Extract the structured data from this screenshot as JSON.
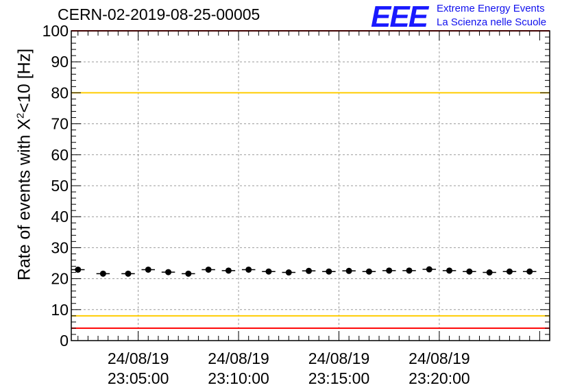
{
  "header": {
    "title": "CERN-02-2019-08-25-00005",
    "logo_mark": "EEE",
    "logo_line1": "Extreme Energy Events",
    "logo_line2": "La Scienza nelle Scuole"
  },
  "chart_data": {
    "type": "scatter",
    "title": "CERN-02-2019-08-25-00005",
    "ylabel_prefix": "Rate of events with X",
    "ylabel_sup": "2",
    "ylabel_suffix": "<10 [Hz]",
    "xlabel": "",
    "ylim": [
      0,
      100
    ],
    "yticks": [
      0,
      10,
      20,
      30,
      40,
      50,
      60,
      70,
      80,
      90,
      100
    ],
    "xlim": [
      "24/08/19 23:01:40",
      "24/08/19 23:25:30"
    ],
    "xticks": [
      {
        "date": "24/08/19",
        "time": "23:05:00"
      },
      {
        "date": "24/08/19",
        "time": "23:10:00"
      },
      {
        "date": "24/08/19",
        "time": "23:15:00"
      },
      {
        "date": "24/08/19",
        "time": "23:20:00"
      }
    ],
    "grid": true,
    "bin_width_s": 40,
    "series": [
      {
        "x": [
          "23:02:00",
          "23:03:15",
          "23:04:30",
          "23:05:30",
          "23:06:30",
          "23:07:30",
          "23:08:30",
          "23:09:30",
          "23:10:30",
          "23:11:30",
          "23:12:30",
          "23:13:30",
          "23:14:30",
          "23:15:30",
          "23:16:30",
          "23:17:30",
          "23:18:30",
          "23:19:30",
          "23:20:30",
          "23:21:30",
          "23:22:30",
          "23:23:30",
          "23:24:30"
        ],
        "values": [
          22.9,
          21.6,
          21.6,
          22.9,
          22.1,
          21.6,
          22.9,
          22.6,
          22.9,
          22.3,
          22.0,
          22.5,
          22.3,
          22.5,
          22.3,
          22.6,
          22.6,
          23.0,
          22.6,
          22.3,
          22.0,
          22.3,
          22.3
        ]
      }
    ],
    "reference_lines": [
      {
        "value": 100,
        "color": "#ff0000"
      },
      {
        "value": 80,
        "color": "#ffcc00"
      },
      {
        "value": 8,
        "color": "#ffcc00"
      },
      {
        "value": 4,
        "color": "#ff0000"
      }
    ]
  }
}
